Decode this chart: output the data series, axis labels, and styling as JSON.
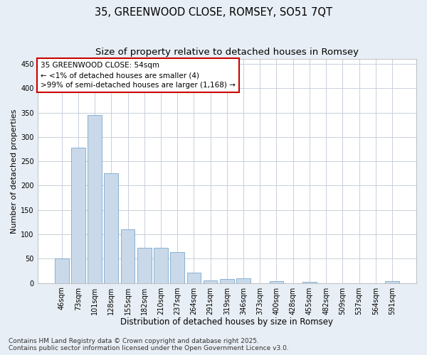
{
  "title": "35, GREENWOOD CLOSE, ROMSEY, SO51 7QT",
  "subtitle": "Size of property relative to detached houses in Romsey",
  "xlabel": "Distribution of detached houses by size in Romsey",
  "ylabel": "Number of detached properties",
  "categories": [
    "46sqm",
    "73sqm",
    "101sqm",
    "128sqm",
    "155sqm",
    "182sqm",
    "210sqm",
    "237sqm",
    "264sqm",
    "291sqm",
    "319sqm",
    "346sqm",
    "373sqm",
    "400sqm",
    "428sqm",
    "455sqm",
    "482sqm",
    "509sqm",
    "537sqm",
    "564sqm",
    "591sqm"
  ],
  "values": [
    50,
    278,
    345,
    225,
    110,
    72,
    72,
    63,
    22,
    5,
    8,
    10,
    0,
    4,
    0,
    3,
    0,
    0,
    0,
    0,
    4
  ],
  "bar_color": "#c9d9ea",
  "bar_edge_color": "#7aa8cc",
  "annotation_box_text": "35 GREENWOOD CLOSE: 54sqm\n← <1% of detached houses are smaller (4)\n>99% of semi-detached houses are larger (1,168) →",
  "annotation_box_color": "#ffffff",
  "annotation_box_edge_color": "#cc0000",
  "ylim": [
    0,
    460
  ],
  "yticks": [
    0,
    50,
    100,
    150,
    200,
    250,
    300,
    350,
    400,
    450
  ],
  "bg_color": "#e8eef5",
  "plot_bg_color": "#ffffff",
  "grid_color": "#c8d0dc",
  "footnote": "Contains HM Land Registry data © Crown copyright and database right 2025.\nContains public sector information licensed under the Open Government Licence v3.0.",
  "title_fontsize": 10.5,
  "subtitle_fontsize": 9.5,
  "xlabel_fontsize": 8.5,
  "ylabel_fontsize": 8,
  "tick_fontsize": 7,
  "annotation_fontsize": 7.5,
  "footnote_fontsize": 6.5
}
